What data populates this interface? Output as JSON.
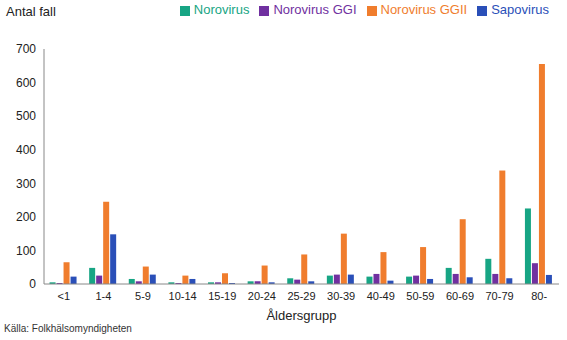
{
  "chart_data": {
    "type": "bar",
    "y_label": "Antal fall",
    "x_label": "Åldersgrupp",
    "source": "Källa: Folkhälsomyndigheten",
    "categories": [
      "<1",
      "1-4",
      "5-9",
      "10-14",
      "15-19",
      "20-24",
      "25-29",
      "30-39",
      "40-49",
      "50-59",
      "60-69",
      "70-79",
      "80-"
    ],
    "series": [
      {
        "name": "Norovirus",
        "color": "#17a584",
        "values": [
          5,
          48,
          15,
          5,
          5,
          8,
          17,
          25,
          22,
          22,
          48,
          75,
          225
        ]
      },
      {
        "name": "Norovirus GGI",
        "color": "#7030a0",
        "values": [
          3,
          25,
          8,
          3,
          5,
          8,
          13,
          28,
          30,
          25,
          30,
          30,
          62
        ]
      },
      {
        "name": "Norovirus GGII",
        "color": "#f07d2d",
        "values": [
          65,
          245,
          52,
          25,
          32,
          55,
          88,
          150,
          95,
          110,
          193,
          338,
          655
        ]
      },
      {
        "name": "Sapovirus",
        "color": "#2a4fb8",
        "values": [
          22,
          148,
          28,
          15,
          3,
          5,
          8,
          28,
          10,
          15,
          20,
          17,
          27
        ]
      }
    ],
    "ylim": [
      0,
      700
    ],
    "yticks": [
      0,
      100,
      200,
      300,
      400,
      500,
      600,
      700
    ],
    "grid": false,
    "legend": "top"
  }
}
